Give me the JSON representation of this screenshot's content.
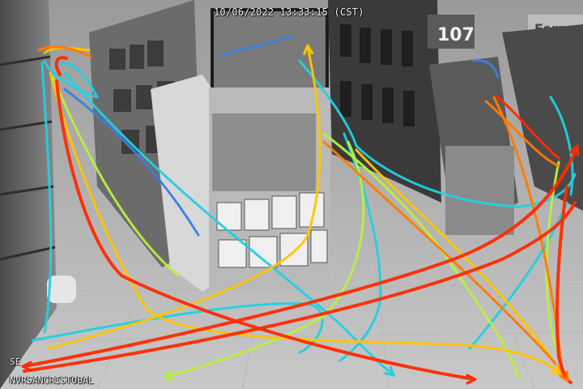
{
  "overlay": {
    "timestamp": "10/06/2022 13:33:15 (CST)",
    "camera_line1": "SE",
    "camera_line2": "NVRSANCRISTOBAL"
  },
  "signs": {
    "aisle_number": "107",
    "aisle_name": "Ferre"
  },
  "colors": {
    "trail_red": "#ff2a00",
    "trail_orange": "#ff7a00",
    "trail_yellow": "#ffc400",
    "trail_lime": "#b8f040",
    "trail_cyan": "#22d0e0",
    "trail_blue": "#3a7fe0"
  }
}
